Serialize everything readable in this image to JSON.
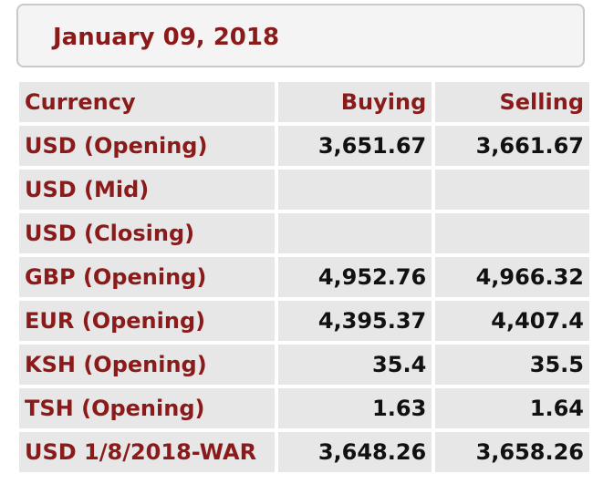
{
  "date": "January 09, 2018",
  "columns": {
    "currency": "Currency",
    "buying": "Buying",
    "selling": "Selling"
  },
  "rows": [
    {
      "currency": "USD (Opening)",
      "buying": "3,651.67",
      "selling": "3,661.67"
    },
    {
      "currency": "USD (Mid)",
      "buying": "",
      "selling": ""
    },
    {
      "currency": "USD (Closing)",
      "buying": "",
      "selling": ""
    },
    {
      "currency": "GBP (Opening)",
      "buying": "4,952.76",
      "selling": "4,966.32"
    },
    {
      "currency": "EUR (Opening)",
      "buying": "4,395.37",
      "selling": "4,407.4"
    },
    {
      "currency": "KSH (Opening)",
      "buying": "35.4",
      "selling": "35.5"
    },
    {
      "currency": "TSH (Opening)",
      "buying": "1.63",
      "selling": "1.64"
    },
    {
      "currency": "USD 1/8/2018-WAR",
      "buying": "3,648.26",
      "selling": "3,658.26"
    }
  ],
  "colors": {
    "accent": "#8b1a1a",
    "cell_bg": "#e7e7e7",
    "value_text": "#111111"
  }
}
